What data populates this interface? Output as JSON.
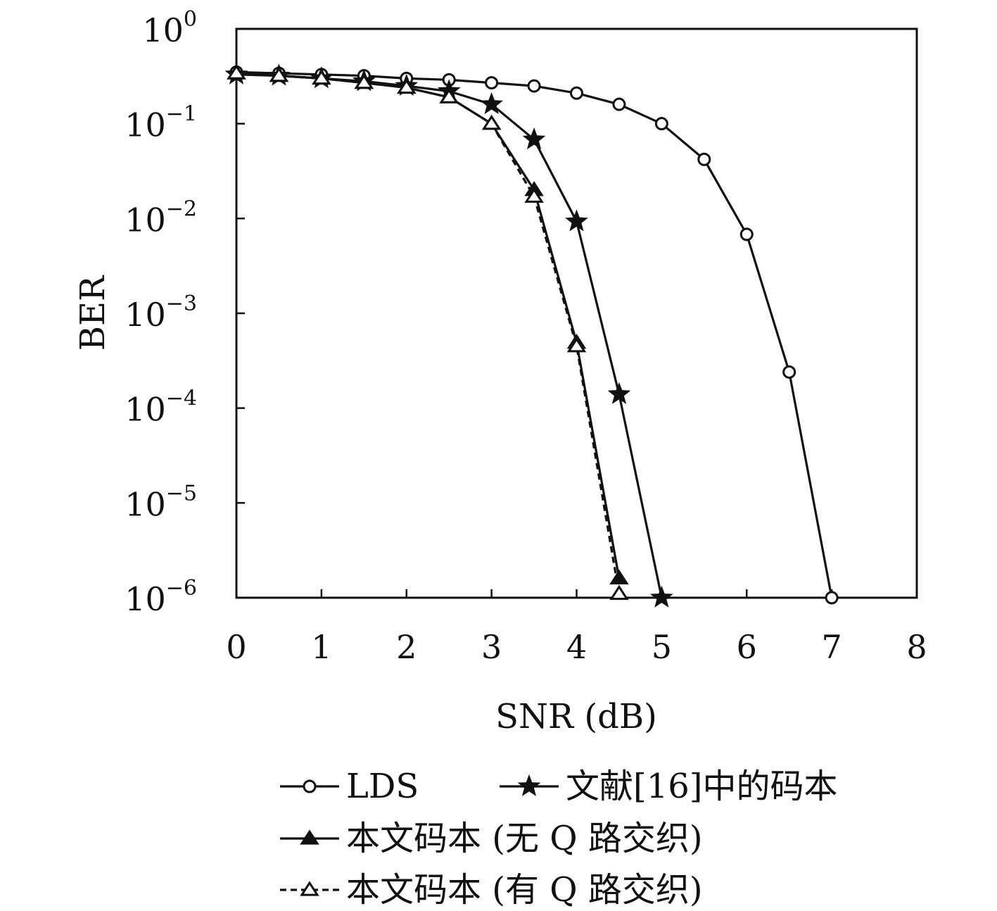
{
  "chart_data": {
    "type": "line",
    "xlabel": "SNR (dB)",
    "ylabel": "BER",
    "xlim": [
      0,
      8
    ],
    "ylim": [
      1e-06,
      1
    ],
    "yscale": "log",
    "grid": false,
    "legend_position": "bottom",
    "x_ticks": [
      {
        "value": 0,
        "label": "0"
      },
      {
        "value": 1,
        "label": "1"
      },
      {
        "value": 2,
        "label": "2"
      },
      {
        "value": 3,
        "label": "3"
      },
      {
        "value": 4,
        "label": "4"
      },
      {
        "value": 5,
        "label": "5"
      },
      {
        "value": 6,
        "label": "6"
      },
      {
        "value": 7,
        "label": "7"
      },
      {
        "value": 8,
        "label": "8"
      }
    ],
    "y_ticks": [
      {
        "value": 1,
        "base": "10",
        "exp": "0"
      },
      {
        "value": 0.1,
        "base": "10",
        "exp": "−1"
      },
      {
        "value": 0.01,
        "base": "10",
        "exp": "−2"
      },
      {
        "value": 0.001,
        "base": "10",
        "exp": "−3"
      },
      {
        "value": 0.0001,
        "base": "10",
        "exp": "−4"
      },
      {
        "value": 1e-05,
        "base": "10",
        "exp": "−5"
      },
      {
        "value": 1e-06,
        "base": "10",
        "exp": "−6"
      }
    ],
    "series": [
      {
        "name": "LDS",
        "marker": "circle",
        "line": "solid",
        "x": [
          0,
          0.5,
          1,
          1.5,
          2,
          2.5,
          3,
          3.5,
          4,
          4.5,
          5,
          5.5,
          6,
          6.5,
          7
        ],
        "y": [
          0.35,
          0.34,
          0.33,
          0.32,
          0.3,
          0.29,
          0.27,
          0.25,
          0.21,
          0.16,
          0.1,
          0.042,
          0.0068,
          0.00024,
          1e-06
        ]
      },
      {
        "name": "文献[16]中的码本",
        "marker": "star",
        "line": "solid",
        "x": [
          0,
          0.5,
          1,
          1.5,
          2,
          2.5,
          3,
          3.5,
          4,
          4.5,
          5
        ],
        "y": [
          0.33,
          0.32,
          0.3,
          0.28,
          0.25,
          0.22,
          0.16,
          0.068,
          0.0093,
          0.00014,
          1e-06
        ]
      },
      {
        "name": "本文码本 (无 Q 路交织)",
        "marker": "triangle-filled",
        "line": "solid",
        "x": [
          0,
          0.5,
          1,
          1.5,
          2,
          2.5,
          3,
          3.5,
          4,
          4.5
        ],
        "y": [
          0.34,
          0.32,
          0.3,
          0.27,
          0.24,
          0.19,
          0.1,
          0.02,
          0.00049,
          1.6e-06
        ]
      },
      {
        "name": "本文码本 (有 Q 路交织)",
        "marker": "triangle-open",
        "line": "dashed",
        "x": [
          0,
          0.5,
          1,
          1.5,
          2,
          2.5,
          3,
          3.5,
          4,
          4.5
        ],
        "y": [
          0.34,
          0.32,
          0.3,
          0.27,
          0.24,
          0.19,
          0.1,
          0.017,
          0.00045,
          1.1e-06
        ]
      }
    ]
  }
}
